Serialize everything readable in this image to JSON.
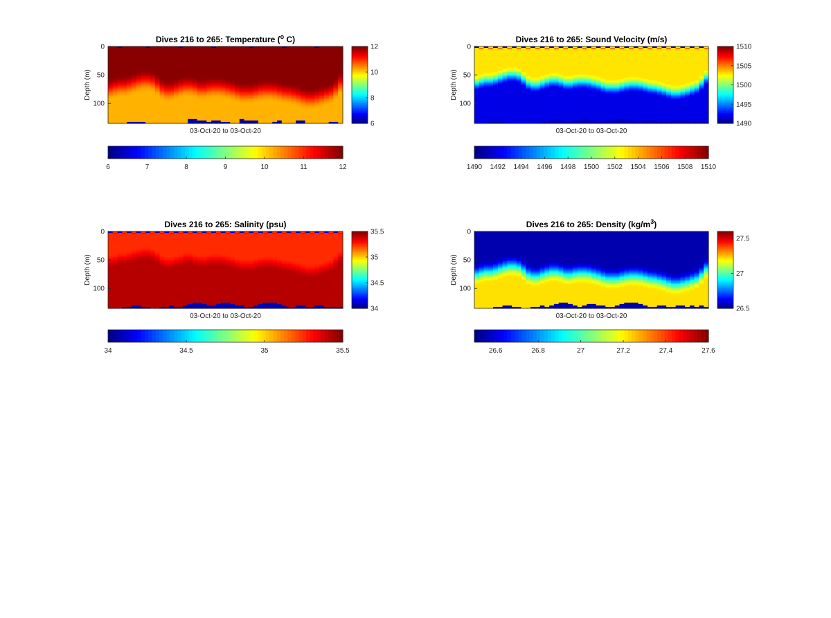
{
  "figure": {
    "background": "#ffffff",
    "colormap": "jet"
  },
  "chart_data": [
    {
      "type": "heatmap",
      "title": "Dives 216 to 265: Temperature (",
      "title_superscript": "o",
      "title_suffix": " C)",
      "xlabel": "03-Oct-20 to 03-Oct-20",
      "ylabel": "Depth (m)",
      "x": "dives",
      "x_range": [
        216,
        265
      ],
      "ylim": [
        0,
        135
      ],
      "y_reversed": true,
      "yticks": [
        "0",
        "50",
        "100"
      ],
      "ytick_values": [
        0,
        50,
        100
      ],
      "clim": [
        6,
        12
      ],
      "side_colorbar_ticks": [
        "6",
        "8",
        "10",
        "12"
      ],
      "side_colorbar_values": [
        6,
        8,
        10,
        12
      ],
      "bottom_colorbar_ticks": [
        "6",
        "7",
        "8",
        "9",
        "10",
        "11",
        "12"
      ],
      "bottom_colorbar_values": [
        6,
        7,
        8,
        9,
        10,
        11,
        12
      ],
      "profile": {
        "layer_depth_start": [
          55,
          52,
          50,
          50,
          48,
          45,
          42,
          40,
          40,
          42,
          48,
          55,
          58,
          58,
          55,
          52,
          50,
          50,
          52,
          55,
          55,
          53,
          52,
          52,
          53,
          55,
          57,
          60,
          62,
          62,
          62,
          60,
          58,
          57,
          57,
          58,
          60,
          62,
          63,
          65,
          67,
          70,
          72,
          72,
          70,
          68,
          65,
          62,
          55,
          45
        ],
        "layer_depth_end": [
          95,
          92,
          90,
          90,
          88,
          85,
          82,
          80,
          80,
          82,
          88,
          95,
          98,
          98,
          95,
          92,
          90,
          90,
          92,
          95,
          95,
          93,
          92,
          92,
          93,
          95,
          97,
          100,
          102,
          102,
          102,
          100,
          98,
          97,
          97,
          98,
          100,
          102,
          103,
          105,
          107,
          110,
          112,
          112,
          110,
          108,
          105,
          102,
          95,
          85
        ],
        "surface_value": 11.95,
        "deep_value": 10.2,
        "bottom_depth": [
          135,
          135,
          135,
          135,
          132,
          132,
          132,
          132,
          135,
          135,
          135,
          135,
          135,
          135,
          135,
          135,
          135,
          128,
          128,
          130,
          131,
          132,
          131,
          130,
          132,
          132,
          135,
          135,
          128,
          130,
          131,
          131,
          135,
          135,
          135,
          132,
          130,
          135,
          135,
          135,
          130,
          130,
          135,
          135,
          135,
          135,
          135,
          132,
          132,
          135
        ],
        "surface_gaps": [
          2,
          8,
          15,
          22,
          30,
          37,
          44
        ]
      }
    },
    {
      "type": "heatmap",
      "title": "Dives 216 to 265: Sound Velocity (m/s)",
      "title_superscript": "",
      "title_suffix": "",
      "xlabel": "03-Oct-20 to 03-Oct-20",
      "ylabel": "Depth (m)",
      "x": "dives",
      "x_range": [
        216,
        265
      ],
      "ylim": [
        0,
        135
      ],
      "y_reversed": true,
      "yticks": [
        "0",
        "50",
        "100"
      ],
      "ytick_values": [
        0,
        50,
        100
      ],
      "clim": [
        1490,
        1510
      ],
      "side_colorbar_ticks": [
        "1490",
        "1495",
        "1500",
        "1505",
        "1510"
      ],
      "side_colorbar_values": [
        1490,
        1495,
        1500,
        1505,
        1510
      ],
      "bottom_colorbar_ticks": [
        "1490",
        "1492",
        "1494",
        "1496",
        "1498",
        "1500",
        "1502",
        "1504",
        "1506",
        "1508",
        "1510"
      ],
      "bottom_colorbar_values": [
        1490,
        1492,
        1494,
        1496,
        1498,
        1500,
        1502,
        1504,
        1506,
        1508,
        1510
      ],
      "profile": {
        "layer_depth_start": [
          50,
          47,
          45,
          45,
          43,
          40,
          37,
          35,
          35,
          37,
          43,
          50,
          53,
          53,
          50,
          47,
          45,
          45,
          47,
          50,
          50,
          48,
          47,
          47,
          48,
          50,
          52,
          55,
          57,
          57,
          57,
          55,
          53,
          52,
          52,
          53,
          55,
          57,
          58,
          60,
          62,
          65,
          67,
          67,
          65,
          63,
          60,
          57,
          50,
          40
        ],
        "layer_depth_end": [
          80,
          77,
          75,
          75,
          73,
          70,
          67,
          65,
          65,
          67,
          73,
          80,
          83,
          83,
          80,
          77,
          75,
          75,
          77,
          80,
          80,
          78,
          77,
          77,
          78,
          80,
          82,
          85,
          87,
          87,
          87,
          85,
          83,
          82,
          82,
          83,
          85,
          87,
          88,
          90,
          92,
          95,
          97,
          97,
          95,
          93,
          90,
          87,
          80,
          70
        ],
        "surface_value": 1503.0,
        "deep_value": 1492.0,
        "bottom_value": 1490.5,
        "bottom_depth": [
          135,
          135,
          135,
          132,
          132,
          132,
          135,
          135,
          135,
          135,
          135,
          135,
          135,
          135,
          132,
          132,
          130,
          130,
          130,
          132,
          132,
          130,
          130,
          128,
          130,
          130,
          132,
          132,
          130,
          130,
          128,
          128,
          130,
          130,
          132,
          132,
          130,
          130,
          130,
          132,
          132,
          132,
          130,
          130,
          130,
          130,
          132,
          132,
          132,
          132
        ],
        "surface_gaps": [
          0,
          2,
          4,
          6,
          8,
          10,
          12,
          14,
          16,
          18,
          20,
          22,
          24,
          26,
          28,
          30,
          32,
          34,
          36,
          38,
          40,
          42,
          44,
          46,
          48
        ]
      }
    },
    {
      "type": "heatmap",
      "title": "Dives 216 to 265: Salinity (psu)",
      "title_superscript": "",
      "title_suffix": "",
      "xlabel": "03-Oct-20 to 03-Oct-20",
      "ylabel": "Depth (m)",
      "x": "dives",
      "x_range": [
        216,
        265
      ],
      "ylim": [
        0,
        135
      ],
      "y_reversed": true,
      "yticks": [
        "0",
        "50",
        "100"
      ],
      "ytick_values": [
        0,
        50,
        100
      ],
      "clim": [
        34,
        35.5
      ],
      "side_colorbar_ticks": [
        "34",
        "34.5",
        "35",
        "35.5"
      ],
      "side_colorbar_values": [
        34,
        34.5,
        35,
        35.5
      ],
      "bottom_colorbar_ticks": [
        "34",
        "34.5",
        "35",
        "35.5"
      ],
      "bottom_colorbar_values": [
        34,
        34.5,
        35,
        35.5
      ],
      "profile": {
        "layer_depth_start": [
          40,
          38,
          35,
          35,
          33,
          30,
          28,
          26,
          26,
          28,
          33,
          40,
          43,
          43,
          40,
          38,
          35,
          35,
          38,
          40,
          40,
          38,
          37,
          37,
          38,
          40,
          42,
          45,
          47,
          47,
          47,
          45,
          43,
          42,
          42,
          43,
          45,
          47,
          48,
          50,
          52,
          55,
          57,
          57,
          55,
          53,
          50,
          47,
          40,
          32
        ],
        "layer_depth_end": [
          65,
          63,
          60,
          60,
          58,
          55,
          53,
          51,
          51,
          53,
          58,
          65,
          68,
          68,
          65,
          63,
          60,
          60,
          63,
          65,
          65,
          63,
          62,
          62,
          63,
          65,
          67,
          70,
          72,
          72,
          72,
          70,
          68,
          67,
          67,
          68,
          70,
          72,
          73,
          75,
          77,
          80,
          82,
          82,
          80,
          78,
          75,
          72,
          65,
          57
        ],
        "surface_value": 35.25,
        "deep_value": 35.42,
        "bottom_depth": [
          135,
          135,
          135,
          132,
          132,
          130,
          130,
          132,
          132,
          135,
          135,
          132,
          132,
          130,
          132,
          132,
          130,
          128,
          125,
          125,
          128,
          130,
          130,
          128,
          126,
          126,
          128,
          130,
          130,
          132,
          132,
          130,
          128,
          126,
          125,
          126,
          128,
          130,
          132,
          132,
          130,
          130,
          132,
          132,
          130,
          130,
          132,
          132,
          132,
          132
        ],
        "surface_gaps": [
          0,
          2,
          4,
          6,
          8,
          10,
          12,
          14,
          16,
          18,
          20,
          22,
          24,
          26,
          28,
          30,
          32,
          34,
          36,
          38,
          40,
          42,
          44,
          46,
          48
        ]
      }
    },
    {
      "type": "heatmap",
      "title": "Dives 216 to 265: Density (kg/m",
      "title_superscript": "3",
      "title_suffix": ")",
      "xlabel": "03-Oct-20 to 03-Oct-20",
      "ylabel": "Depth (m)",
      "x": "dives",
      "x_range": [
        216,
        265
      ],
      "ylim": [
        0,
        135
      ],
      "y_reversed": true,
      "yticks": [
        "0",
        "50",
        "100"
      ],
      "ytick_values": [
        0,
        50,
        100
      ],
      "clim": [
        26.5,
        27.6
      ],
      "side_colorbar_ticks": [
        "26.5",
        "27",
        "27.5"
      ],
      "side_colorbar_values": [
        26.5,
        27,
        27.5
      ],
      "bottom_colorbar_ticks": [
        "26.6",
        "26.8",
        "27",
        "27.2",
        "27.4",
        "27.6"
      ],
      "bottom_colorbar_values": [
        26.6,
        26.8,
        27,
        27.2,
        27.4,
        27.6
      ],
      "profile": {
        "layer_depth_start": [
          55,
          52,
          50,
          50,
          48,
          45,
          42,
          40,
          40,
          42,
          48,
          55,
          58,
          58,
          55,
          52,
          50,
          50,
          52,
          55,
          55,
          53,
          52,
          52,
          53,
          55,
          57,
          60,
          62,
          62,
          62,
          60,
          58,
          57,
          57,
          58,
          60,
          62,
          63,
          65,
          67,
          70,
          72,
          72,
          70,
          68,
          65,
          62,
          55,
          45
        ],
        "layer_depth_end": [
          95,
          92,
          90,
          90,
          88,
          85,
          82,
          80,
          80,
          82,
          88,
          95,
          98,
          98,
          95,
          92,
          90,
          90,
          92,
          95,
          95,
          93,
          92,
          92,
          93,
          95,
          97,
          100,
          102,
          102,
          102,
          100,
          98,
          97,
          97,
          98,
          100,
          102,
          103,
          105,
          107,
          110,
          112,
          112,
          110,
          108,
          105,
          102,
          95,
          85
        ],
        "surface_value": 26.55,
        "deep_value": 27.22,
        "bottom_depth": [
          135,
          135,
          135,
          135,
          132,
          132,
          130,
          130,
          132,
          132,
          135,
          135,
          132,
          132,
          130,
          132,
          130,
          128,
          125,
          125,
          128,
          130,
          132,
          130,
          128,
          128,
          130,
          130,
          132,
          132,
          130,
          128,
          126,
          125,
          126,
          128,
          130,
          132,
          132,
          130,
          130,
          132,
          132,
          130,
          130,
          132,
          130,
          132,
          130,
          132
        ],
        "surface_gaps": []
      }
    }
  ]
}
